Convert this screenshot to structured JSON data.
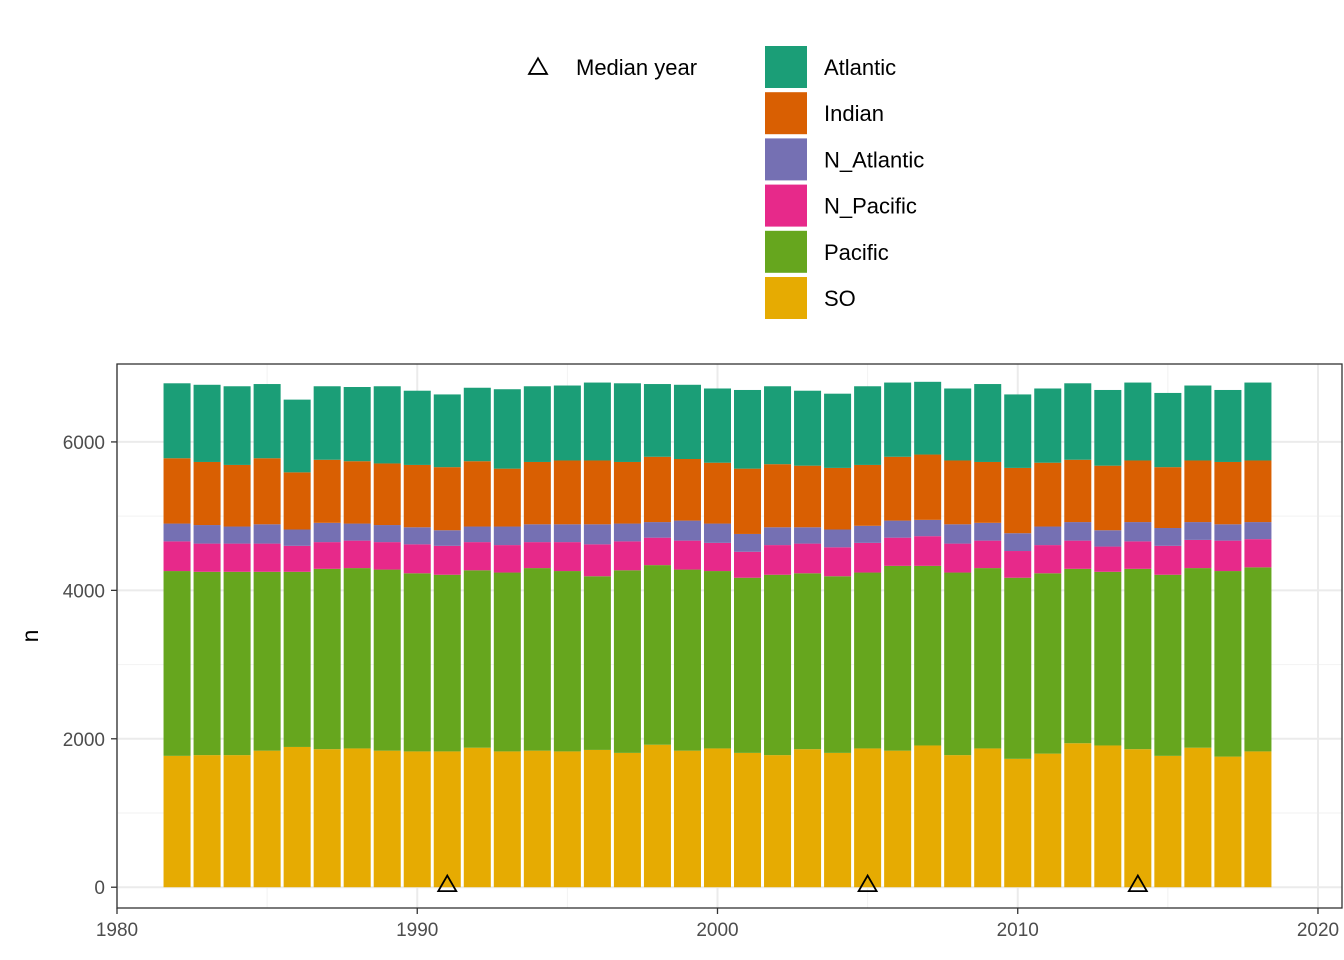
{
  "chart_data": {
    "type": "bar",
    "stacked": true,
    "xlabel": "",
    "ylabel": "n",
    "xlim": [
      1980,
      2020
    ],
    "ylim": [
      0,
      6800
    ],
    "x_ticks": [
      "1980",
      "1990",
      "2000",
      "2010",
      "2020"
    ],
    "y_ticks": [
      "0",
      "2000",
      "4000",
      "6000"
    ],
    "grid": true,
    "legend_position": "top",
    "x": [
      1982,
      1983,
      1984,
      1985,
      1986,
      1987,
      1988,
      1989,
      1990,
      1991,
      1992,
      1993,
      1994,
      1995,
      1996,
      1997,
      1998,
      1999,
      2000,
      2001,
      2002,
      2003,
      2004,
      2005,
      2006,
      2007,
      2008,
      2009,
      2010,
      2011,
      2012,
      2013,
      2014,
      2015,
      2016,
      2017,
      2018
    ],
    "series": [
      {
        "name": "SO",
        "color": "#E6AB02",
        "values": [
          1770,
          1780,
          1780,
          1840,
          1890,
          1860,
          1870,
          1840,
          1830,
          1830,
          1880,
          1830,
          1840,
          1830,
          1850,
          1810,
          1920,
          1840,
          1870,
          1810,
          1780,
          1860,
          1810,
          1870,
          1840,
          1910,
          1780,
          1870,
          1730,
          1800,
          1940,
          1910,
          1860,
          1770,
          1880,
          1760,
          1830
        ]
      },
      {
        "name": "Pacific",
        "color": "#66A61E",
        "values": [
          2490,
          2470,
          2470,
          2410,
          2360,
          2430,
          2430,
          2440,
          2400,
          2380,
          2390,
          2410,
          2460,
          2430,
          2340,
          2460,
          2420,
          2440,
          2390,
          2360,
          2430,
          2370,
          2380,
          2370,
          2490,
          2420,
          2460,
          2430,
          2440,
          2430,
          2350,
          2340,
          2430,
          2440,
          2420,
          2500,
          2480
        ]
      },
      {
        "name": "N_Pacific",
        "color": "#E7298A",
        "values": [
          400,
          380,
          380,
          380,
          350,
          360,
          370,
          370,
          390,
          390,
          380,
          370,
          350,
          390,
          430,
          390,
          370,
          390,
          380,
          350,
          400,
          400,
          390,
          400,
          380,
          400,
          390,
          370,
          360,
          380,
          380,
          340,
          370,
          390,
          380,
          410,
          380
        ]
      },
      {
        "name": "N_Atlantic",
        "color": "#7570B3",
        "values": [
          240,
          250,
          230,
          260,
          220,
          260,
          230,
          230,
          230,
          210,
          210,
          250,
          240,
          240,
          270,
          240,
          210,
          270,
          260,
          240,
          240,
          220,
          240,
          230,
          230,
          220,
          260,
          240,
          240,
          250,
          250,
          220,
          260,
          240,
          240,
          220,
          230
        ]
      },
      {
        "name": "Indian",
        "color": "#D95F02",
        "values": [
          880,
          850,
          830,
          890,
          770,
          850,
          840,
          830,
          840,
          850,
          880,
          780,
          840,
          860,
          860,
          830,
          880,
          830,
          820,
          880,
          850,
          830,
          830,
          820,
          860,
          880,
          860,
          820,
          880,
          860,
          840,
          870,
          830,
          820,
          830,
          840,
          830
        ]
      },
      {
        "name": "Atlantic",
        "color": "#1B9E77",
        "values": [
          1010,
          1040,
          1060,
          1000,
          980,
          990,
          1000,
          1040,
          1000,
          980,
          990,
          1070,
          1020,
          1010,
          1050,
          1060,
          980,
          1000,
          1000,
          1060,
          1050,
          1010,
          1000,
          1060,
          1000,
          980,
          970,
          1050,
          990,
          1000,
          1030,
          1020,
          1050,
          1000,
          1010,
          970,
          1050
        ]
      }
    ],
    "markers": {
      "name": "Median year",
      "shape": "triangle",
      "x": [
        1991,
        2005,
        2014
      ],
      "y": [
        0,
        0,
        0
      ]
    }
  }
}
